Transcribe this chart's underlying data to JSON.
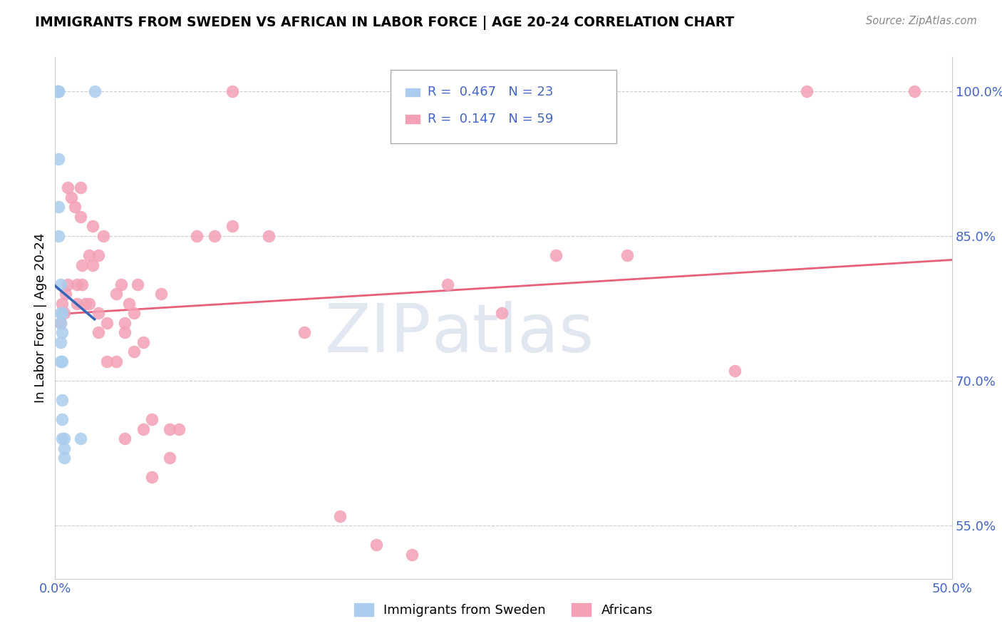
{
  "title": "IMMIGRANTS FROM SWEDEN VS AFRICAN IN LABOR FORCE | AGE 20-24 CORRELATION CHART",
  "source": "Source: ZipAtlas.com",
  "ylabel": "In Labor Force | Age 20-24",
  "legend_label_sweden": "Immigrants from Sweden",
  "legend_label_african": "Africans",
  "watermark_zip": "ZIP",
  "watermark_atlas": "atlas",
  "color_sweden": "#aaccee",
  "color_african": "#f4a0b5",
  "color_sweden_line": "#3366bb",
  "color_african_line": "#e8607a",
  "color_text_blue": "#4466cc",
  "color_grid": "#cccccc",
  "xlim": [
    0.0,
    0.5
  ],
  "ylim": [
    0.495,
    1.035
  ],
  "sweden_x": [
    0.001,
    0.001,
    0.002,
    0.002,
    0.002,
    0.002,
    0.002,
    0.003,
    0.003,
    0.003,
    0.003,
    0.003,
    0.004,
    0.004,
    0.004,
    0.004,
    0.004,
    0.004,
    0.005,
    0.005,
    0.005,
    0.014,
    0.022
  ],
  "sweden_y": [
    1.0,
    1.0,
    1.0,
    1.0,
    0.93,
    0.88,
    0.85,
    0.8,
    0.77,
    0.76,
    0.74,
    0.72,
    0.77,
    0.75,
    0.72,
    0.68,
    0.66,
    0.64,
    0.64,
    0.63,
    0.62,
    0.64,
    1.0
  ],
  "african_x": [
    0.003,
    0.004,
    0.005,
    0.006,
    0.007,
    0.007,
    0.009,
    0.011,
    0.012,
    0.012,
    0.014,
    0.014,
    0.015,
    0.015,
    0.017,
    0.019,
    0.019,
    0.021,
    0.021,
    0.024,
    0.024,
    0.024,
    0.027,
    0.029,
    0.029,
    0.034,
    0.034,
    0.037,
    0.039,
    0.039,
    0.039,
    0.041,
    0.044,
    0.044,
    0.046,
    0.049,
    0.049,
    0.054,
    0.054,
    0.059,
    0.064,
    0.064,
    0.069,
    0.079,
    0.089,
    0.099,
    0.099,
    0.119,
    0.139,
    0.159,
    0.179,
    0.199,
    0.219,
    0.249,
    0.279,
    0.319,
    0.379,
    0.419,
    0.479
  ],
  "african_y": [
    0.76,
    0.78,
    0.77,
    0.79,
    0.9,
    0.8,
    0.89,
    0.88,
    0.8,
    0.78,
    0.9,
    0.87,
    0.82,
    0.8,
    0.78,
    0.83,
    0.78,
    0.86,
    0.82,
    0.75,
    0.83,
    0.77,
    0.85,
    0.76,
    0.72,
    0.79,
    0.72,
    0.8,
    0.76,
    0.64,
    0.75,
    0.78,
    0.77,
    0.73,
    0.8,
    0.74,
    0.65,
    0.66,
    0.6,
    0.79,
    0.65,
    0.62,
    0.65,
    0.85,
    0.85,
    0.86,
    1.0,
    0.85,
    0.75,
    0.56,
    0.53,
    0.52,
    0.8,
    0.77,
    0.83,
    0.83,
    0.71,
    1.0,
    1.0
  ]
}
